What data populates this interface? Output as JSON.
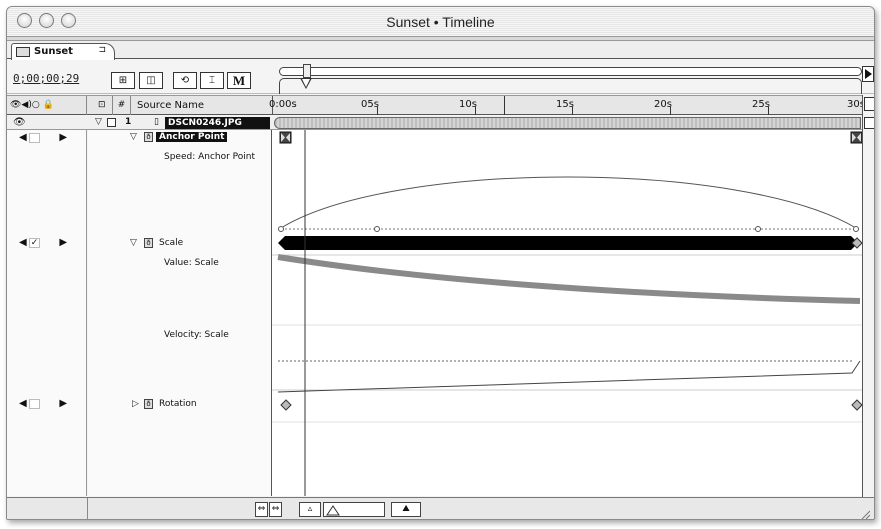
{
  "window": {
    "title": "Sunset • Timeline"
  },
  "tab": {
    "label": "Sunset",
    "menu_glyph": "⊐"
  },
  "controls": {
    "timecode": "0;00;00;29",
    "buttons": [
      {
        "name": "comp-flowchart-button",
        "label": "⊞"
      },
      {
        "name": "render-button",
        "label": "◫"
      },
      {
        "name": "shy-button",
        "label": "⟲"
      },
      {
        "name": "frame-blend-button",
        "label": "⌶"
      },
      {
        "name": "marker-button",
        "label": "M"
      }
    ]
  },
  "header": {
    "av_icons": "👁◀)○ 🔒",
    "label_col": "⊡",
    "number_col": "#",
    "source_name": "Source Name"
  },
  "ruler": {
    "ticks": [
      "0:00s",
      "05s",
      "10s",
      "15s",
      "20s",
      "25s",
      "30s"
    ]
  },
  "layer": {
    "number": "1",
    "name": "DSCN0246.JPG"
  },
  "properties": {
    "anchor_point": "Anchor Point",
    "speed_anchor": "Speed: Anchor Point",
    "scale": "Scale",
    "value_scale": "Value: Scale",
    "velocity_scale": "Velocity: Scale",
    "rotation": "Rotation"
  },
  "colors": {
    "value_curve": "#8a8a8a",
    "bar": "#000000"
  }
}
